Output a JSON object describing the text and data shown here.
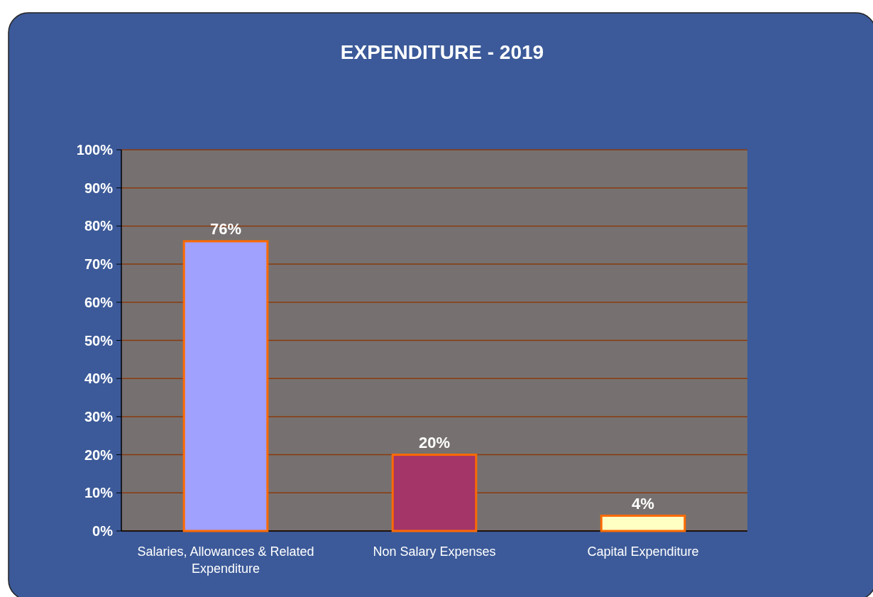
{
  "chart_data": {
    "type": "bar",
    "title": "EXPENDITURE - 2019",
    "categories": [
      "Salaries, Allowances & Related Expenditure",
      "Non Salary Expenses",
      "Capital Expenditure"
    ],
    "values": [
      76,
      20,
      4
    ],
    "colors": [
      "#a0a0ff",
      "#a33568",
      "#ffffc4"
    ],
    "value_labels": [
      "76%",
      "20%",
      "4%"
    ],
    "ylim": [
      0,
      100
    ],
    "yticks": [
      {
        "value": 0,
        "label": "0%"
      },
      {
        "value": 10,
        "label": "10%"
      },
      {
        "value": 20,
        "label": "20%"
      },
      {
        "value": 30,
        "label": "30%"
      },
      {
        "value": 40,
        "label": "40%"
      },
      {
        "value": 50,
        "label": "50%"
      },
      {
        "value": 60,
        "label": "60%"
      },
      {
        "value": 70,
        "label": "70%"
      },
      {
        "value": 80,
        "label": "80%"
      },
      {
        "value": 90,
        "label": "90%"
      },
      {
        "value": 100,
        "label": "100%"
      }
    ],
    "grid": "y"
  }
}
